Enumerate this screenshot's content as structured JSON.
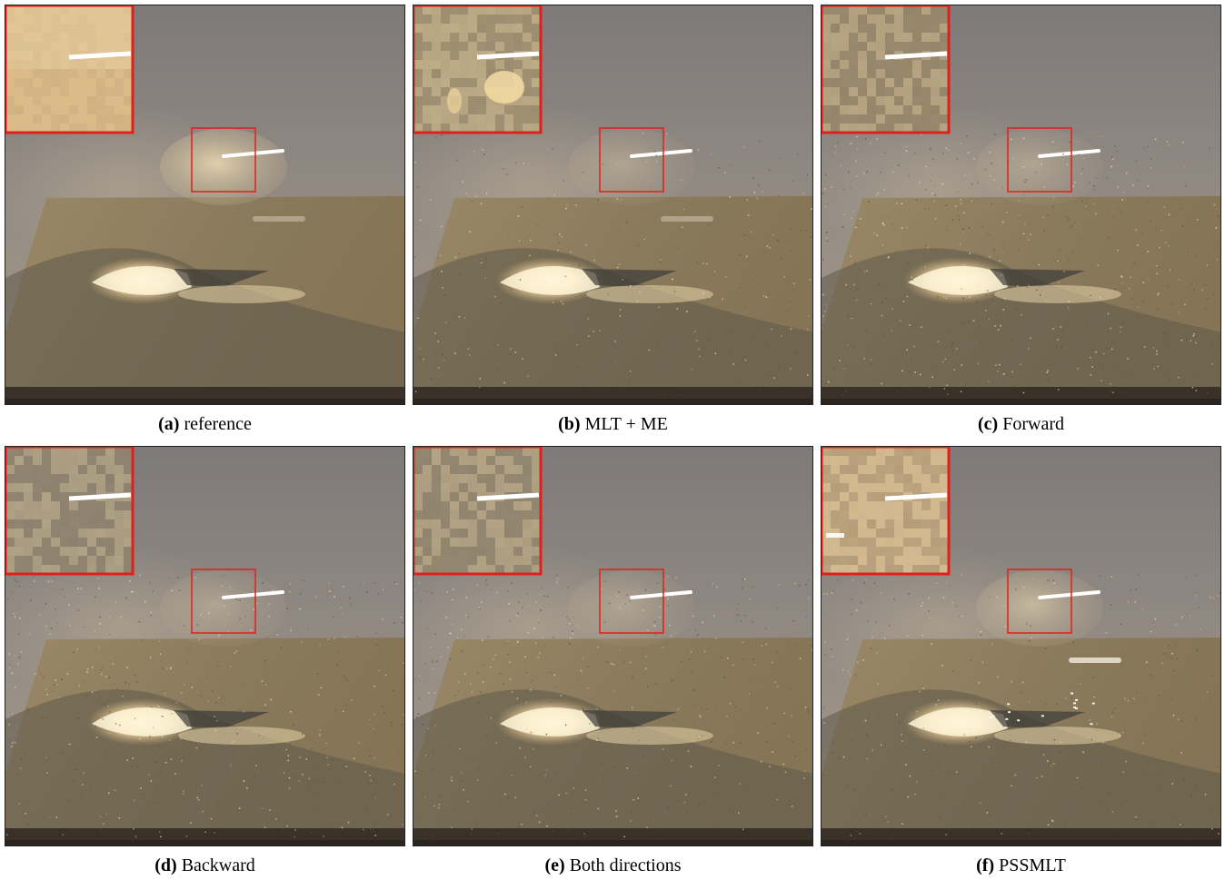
{
  "panels": [
    {
      "letter": "(a)",
      "label": "reference",
      "variant": "reference"
    },
    {
      "letter": "(b)",
      "label": "MLT + ME",
      "variant": "mlt"
    },
    {
      "letter": "(c)",
      "label": "Forward",
      "variant": "forward"
    },
    {
      "letter": "(d)",
      "label": "Backward",
      "variant": "backward"
    },
    {
      "letter": "(e)",
      "label": "Both directions",
      "variant": "both"
    },
    {
      "letter": "(f)",
      "label": "PSSMLT",
      "variant": "pssmlt"
    }
  ],
  "colors": {
    "highlight_box": "#e0201c",
    "wall_top": "#7e7a7a",
    "wall_bottom": "#a89c8c",
    "table": "#8a7a5c",
    "table_shadow": "#5e5a4a",
    "caustic": "#fff4d8"
  }
}
